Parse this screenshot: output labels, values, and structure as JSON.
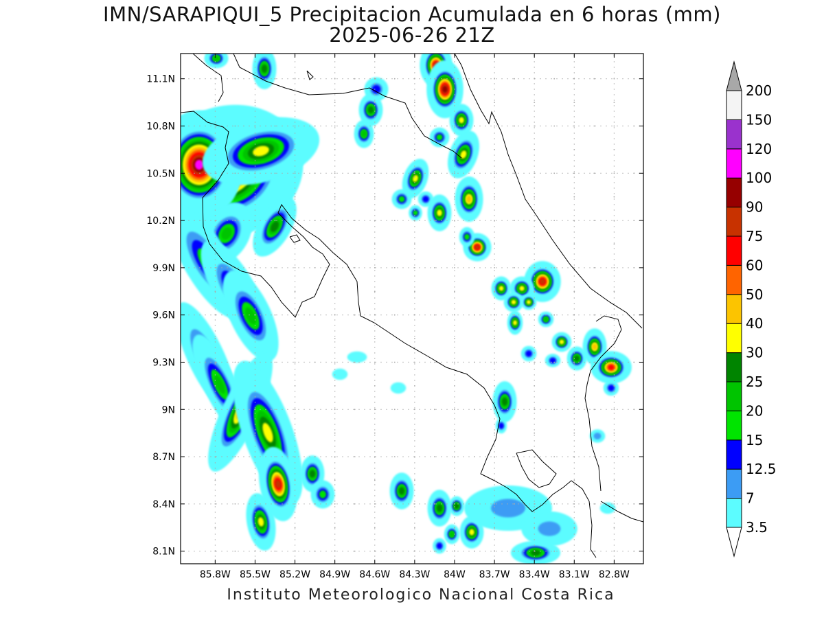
{
  "title": {
    "line1": "IMN/SARAPIQUI_5 Precipitacion Acumulada en 6 horas (mm)",
    "line2": "2025-06-26 21Z"
  },
  "footer": "Instituto Meteorologico Nacional Costa Rica",
  "map": {
    "lon_range": [
      -86.06,
      -82.58
    ],
    "lat_range": [
      8.02,
      11.26
    ],
    "lat_ticks": [
      {
        "value": 11.1,
        "label": "11.1N"
      },
      {
        "value": 10.8,
        "label": "10.8N"
      },
      {
        "value": 10.5,
        "label": "10.5N"
      },
      {
        "value": 10.2,
        "label": "10.2N"
      },
      {
        "value": 9.9,
        "label": "9.9N"
      },
      {
        "value": 9.6,
        "label": "9.6N"
      },
      {
        "value": 9.3,
        "label": "9.3N"
      },
      {
        "value": 9.0,
        "label": "9N"
      },
      {
        "value": 8.7,
        "label": "8.7N"
      },
      {
        "value": 8.4,
        "label": "8.4N"
      },
      {
        "value": 8.1,
        "label": "8.1N"
      }
    ],
    "lon_ticks": [
      {
        "value": -85.8,
        "label": "85.8W"
      },
      {
        "value": -85.5,
        "label": "85.5W"
      },
      {
        "value": -85.2,
        "label": "85.2W"
      },
      {
        "value": -84.9,
        "label": "84.9W"
      },
      {
        "value": -84.6,
        "label": "84.6W"
      },
      {
        "value": -84.3,
        "label": "84.3W"
      },
      {
        "value": -84.0,
        "label": "84W"
      },
      {
        "value": -83.7,
        "label": "83.7W"
      },
      {
        "value": -83.4,
        "label": "83.4W"
      },
      {
        "value": -83.1,
        "label": "83.1W"
      },
      {
        "value": -82.8,
        "label": "82.8W"
      }
    ],
    "grid": true,
    "grid_step_deg": 0.15
  },
  "colorbar": {
    "labels": [
      "3.5",
      "7",
      "12.5",
      "15",
      "20",
      "25",
      "30",
      "40",
      "50",
      "60",
      "75",
      "90",
      "100",
      "120",
      "150",
      "200"
    ],
    "colors": [
      "#5cfcff",
      "#3c9cf4",
      "#0000ff",
      "#00e400",
      "#00c400",
      "#008400",
      "#ffff00",
      "#fcc400",
      "#ff6400",
      "#ff0000",
      "#c83200",
      "#960000",
      "#ff00ff",
      "#9a32cd",
      "#f4f4f4"
    ],
    "over_color": "#a8a8a8",
    "under_color": "#ffffff"
  },
  "colors": {
    "grid_dot": "#aaaaaa",
    "coastline": "#000000"
  }
}
